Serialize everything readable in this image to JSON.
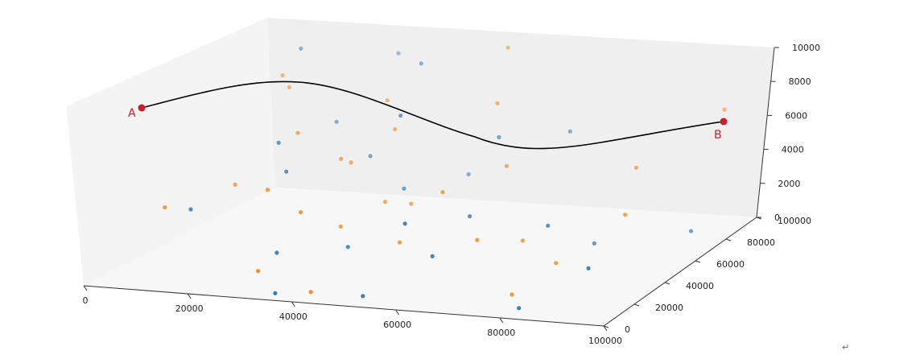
{
  "chart_data": {
    "type": "scatter",
    "projection": "3d",
    "grid": false,
    "axes": {
      "x": {
        "range": [
          0,
          100000
        ],
        "ticks": [
          "0",
          "20000",
          "40000",
          "60000",
          "80000",
          "100000"
        ]
      },
      "y": {
        "range": [
          0,
          100000
        ],
        "ticks": [
          "0",
          "20000",
          "40000",
          "60000",
          "80000",
          "100000"
        ]
      },
      "z": {
        "range": [
          0,
          10000
        ],
        "ticks": [
          "0",
          "2000",
          "4000",
          "6000",
          "8000",
          "10000"
        ]
      }
    },
    "colors": {
      "series1": "#2f78b4",
      "series2": "#f08a24",
      "path": "#000000",
      "endpoints": "#c8202a",
      "pane": "#f0f0f0"
    },
    "endpoints": [
      {
        "label": "A"
      },
      {
        "label": "B"
      }
    ],
    "series": [
      {
        "points": [
          [
            90000,
            20000,
            2000
          ],
          [
            10000,
            30000,
            3000
          ],
          [
            45000,
            80000,
            3000
          ],
          [
            20000,
            80000,
            5500
          ],
          [
            40000,
            30000,
            1500
          ],
          [
            60000,
            40000,
            3200
          ],
          [
            55000,
            20000,
            3800
          ],
          [
            55000,
            70000,
            6000
          ],
          [
            30000,
            70000,
            4300
          ],
          [
            10000,
            90000,
            9000
          ],
          [
            25000,
            100000,
            8500
          ],
          [
            65000,
            80000,
            6000
          ],
          [
            60000,
            20000,
            2000
          ],
          [
            95000,
            60000,
            2000
          ],
          [
            80000,
            10000,
            0
          ],
          [
            75000,
            40000,
            3000
          ],
          [
            35000,
            5000,
            100
          ],
          [
            40000,
            60000,
            3200
          ],
          [
            50000,
            10000,
            0
          ],
          [
            35000,
            85000,
            9000
          ],
          [
            20000,
            50000,
            6000
          ],
          [
            30000,
            20000,
            1500
          ],
          [
            40000,
            60000,
            7500
          ],
          [
            25000,
            40000,
            5000
          ],
          [
            80000,
            50000,
            1500
          ]
        ]
      },
      {
        "points": [
          [
            5000,
            30000,
            3000
          ],
          [
            10000,
            80000,
            8000
          ],
          [
            15000,
            70000,
            8000
          ],
          [
            20000,
            60000,
            6000
          ],
          [
            15000,
            40000,
            4000
          ],
          [
            25000,
            30000,
            4500
          ],
          [
            30000,
            10000,
            1000
          ],
          [
            35000,
            20000,
            4000
          ],
          [
            35000,
            40000,
            2000
          ],
          [
            40000,
            10000,
            0
          ],
          [
            40000,
            50000,
            3000
          ],
          [
            30000,
            80000,
            7000
          ],
          [
            55000,
            40000,
            4500
          ],
          [
            50000,
            30000,
            2000
          ],
          [
            55000,
            70000,
            8000
          ],
          [
            60000,
            60000,
            5000
          ],
          [
            65000,
            30000,
            2500
          ],
          [
            70000,
            40000,
            2000
          ],
          [
            75000,
            20000,
            100
          ],
          [
            80000,
            30000,
            1500
          ],
          [
            85000,
            60000,
            5500
          ],
          [
            90000,
            40000,
            4000
          ],
          [
            95000,
            80000,
            8000
          ],
          [
            50000,
            90000,
            10000
          ],
          [
            30000,
            55000,
            5000
          ],
          [
            45000,
            50000,
            3000
          ],
          [
            35000,
            70000,
            6000
          ],
          [
            30000,
            60000,
            4500
          ]
        ]
      }
    ]
  }
}
